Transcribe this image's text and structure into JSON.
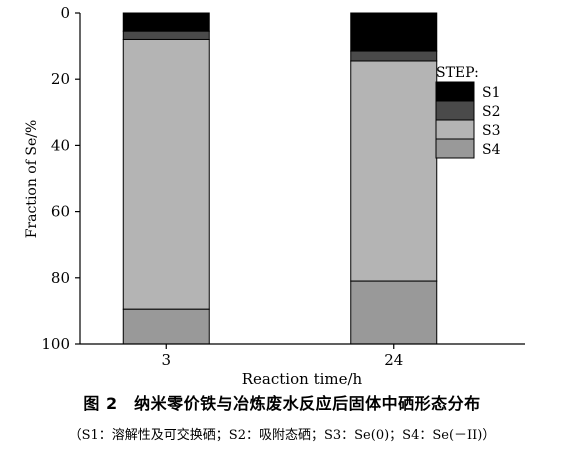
{
  "chart_data": {
    "type": "bar",
    "stacked": true,
    "orientation": "vertical",
    "y_inverted": true,
    "categories": [
      "3",
      "24"
    ],
    "series": [
      {
        "name": "S1",
        "values": [
          5.5,
          11.5
        ],
        "color": "#000000"
      },
      {
        "name": "S2",
        "values": [
          2.5,
          3.0
        ],
        "color": "#4a4a4a"
      },
      {
        "name": "S3",
        "values": [
          81.5,
          66.5
        ],
        "color": "#b4b4b4"
      },
      {
        "name": "S4",
        "values": [
          10.5,
          19.0
        ],
        "color": "#999999"
      }
    ],
    "xlabel": "Reaction time/h",
    "ylabel": "Fraction of Se/%",
    "ylim": [
      0,
      100
    ],
    "yticks": [
      "0",
      "20",
      "40",
      "60",
      "80",
      "100"
    ],
    "legend_title": "STEP:",
    "legend_position": "right",
    "grid": false
  },
  "caption": {
    "title": "图 2　纳米零价铁与冶炼废水反应后固体中硒形态分布",
    "note": "（S1：溶解性及可交换硒；S2：吸附态硒；S3：Se(0)；S4：Se(－II)）"
  }
}
